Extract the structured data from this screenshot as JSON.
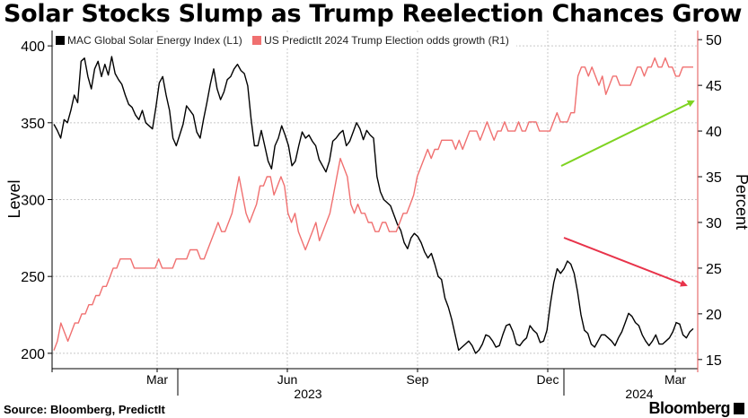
{
  "chart_data": {
    "type": "line",
    "title": "Solar Stocks Slump as Trump Reelection Chances Grow",
    "ylabel_left": "Level",
    "ylabel_right": "Percent",
    "ylim_left": [
      190,
      410
    ],
    "ylim_right": [
      14,
      51
    ],
    "yticks_left": [
      200,
      250,
      300,
      350,
      400
    ],
    "yticks_right": [
      15,
      20,
      25,
      30,
      35,
      40,
      45,
      50
    ],
    "x_tick_labels": [
      "Mar",
      "Jun",
      "Sep",
      "Dec",
      "Mar"
    ],
    "x_year_labels": [
      "2023",
      "2024"
    ],
    "series": [
      {
        "name": "MAC Global Solar Energy Index (L1)",
        "axis": "left",
        "color": "#000000",
        "values": [
          349,
          345,
          340,
          352,
          350,
          358,
          368,
          363,
          390,
          392,
          380,
          372,
          385,
          390,
          380,
          388,
          381,
          393,
          382,
          378,
          375,
          368,
          362,
          360,
          355,
          352,
          358,
          350,
          348,
          346,
          360,
          376,
          380,
          368,
          358,
          340,
          335,
          342,
          349,
          361,
          358,
          355,
          344,
          340,
          352,
          363,
          375,
          385,
          372,
          365,
          370,
          378,
          380,
          385,
          388,
          384,
          382,
          374,
          352,
          335,
          335,
          345,
          335,
          325,
          320,
          335,
          340,
          348,
          342,
          335,
          322,
          325,
          335,
          344,
          340,
          342,
          338,
          335,
          326,
          322,
          318,
          325,
          338,
          340,
          343,
          345,
          335,
          338,
          344,
          350,
          346,
          339,
          345,
          342,
          340,
          315,
          305,
          300,
          298,
          296,
          290,
          284,
          280,
          272,
          268,
          275,
          278,
          276,
          272,
          266,
          262,
          265,
          258,
          250,
          248,
          236,
          230,
          222,
          212,
          202,
          204,
          206,
          208,
          205,
          200,
          202,
          206,
          212,
          211,
          208,
          204,
          205,
          212,
          218,
          219,
          214,
          206,
          205,
          208,
          210,
          218,
          215,
          213,
          207,
          208,
          215,
          232,
          246,
          255,
          252,
          255,
          260,
          258,
          252,
          240,
          225,
          215,
          213,
          206,
          204,
          208,
          212,
          212,
          210,
          208,
          205,
          210,
          214,
          220,
          226,
          224,
          220,
          218,
          212,
          208,
          205,
          208,
          212,
          206,
          206,
          208,
          210,
          214,
          220,
          219,
          212,
          210,
          214,
          216
        ]
      },
      {
        "name": "US PredictIt 2024 Trump Election odds growth (R1)",
        "axis": "right",
        "color": "#f07070",
        "values": [
          16,
          17,
          19,
          18,
          17,
          18,
          19,
          19,
          20,
          20,
          21,
          21,
          22,
          22,
          23,
          23,
          24,
          25,
          25,
          26,
          26,
          26,
          26,
          25,
          25,
          25,
          25,
          25,
          25,
          25,
          26,
          25,
          25,
          25,
          25,
          26,
          26,
          26,
          26,
          27,
          27,
          27,
          26,
          26,
          27,
          28,
          29,
          30,
          29,
          29,
          30,
          31,
          33,
          35,
          33,
          31,
          30,
          31,
          32,
          34,
          34,
          35,
          35,
          33,
          34,
          35,
          34,
          31,
          30,
          31,
          29,
          28,
          27,
          28,
          29,
          30,
          28,
          29,
          30,
          31,
          33,
          35,
          37,
          36,
          35,
          32,
          31,
          32,
          31,
          31,
          30,
          30,
          29,
          29,
          30,
          30,
          29,
          29,
          29,
          30,
          31,
          31,
          32,
          33,
          35,
          36,
          37,
          38,
          37,
          38,
          38,
          39,
          39,
          39,
          39,
          38,
          39,
          38,
          39,
          40,
          40,
          40,
          39,
          40,
          41,
          40,
          39,
          40,
          40,
          41,
          40,
          40,
          40,
          41,
          40,
          40,
          41,
          41,
          41,
          40,
          40,
          40,
          40,
          41,
          42,
          41,
          41,
          41,
          42,
          42,
          46,
          47,
          47,
          46,
          47,
          46,
          45,
          46,
          44,
          45,
          46,
          46,
          45,
          45,
          45,
          45,
          46,
          47,
          47,
          46,
          47,
          47,
          48,
          47,
          47,
          48,
          47,
          47,
          46,
          46,
          47,
          47,
          47,
          47
        ]
      }
    ],
    "annotations": [
      {
        "type": "arrow",
        "color": "#7ed321",
        "meaning": "rising Trump odds"
      },
      {
        "type": "arrow",
        "color": "#e8334a",
        "meaning": "falling solar index"
      }
    ]
  },
  "header": {
    "title": "Solar Stocks Slump as Trump Reelection Chances Grow"
  },
  "footer": {
    "source": "Source: Bloomberg, PredictIt",
    "brand": "Bloomberg"
  },
  "colors": {
    "solar": "#000000",
    "trump": "#f07070",
    "arrow_up": "#7ed321",
    "arrow_down": "#e8334a",
    "grid": "#c8c8c8"
  }
}
